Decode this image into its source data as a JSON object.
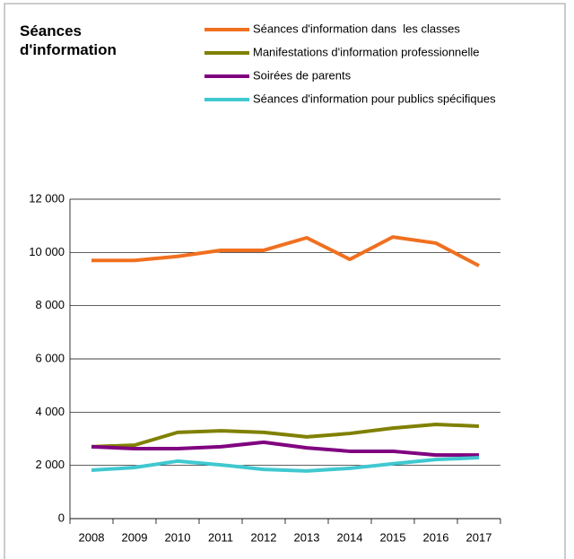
{
  "chart_data": {
    "type": "line",
    "title": "Séances d'information",
    "categories": [
      "2008",
      "2009",
      "2010",
      "2011",
      "2012",
      "2013",
      "2014",
      "2015",
      "2016",
      "2017"
    ],
    "series": [
      {
        "name": "Séances d'information dans  les classes",
        "color": "#f07020",
        "values": [
          9700,
          9700,
          9850,
          10080,
          10080,
          10550,
          9740,
          10580,
          10350,
          9500
        ]
      },
      {
        "name": "Manifestations d'information professionnelle",
        "color": "#808000",
        "values": [
          2700,
          2760,
          3240,
          3300,
          3240,
          3070,
          3200,
          3400,
          3540,
          3470
        ]
      },
      {
        "name": "Soirées de parents",
        "color": "#800080",
        "values": [
          2700,
          2630,
          2630,
          2700,
          2870,
          2660,
          2530,
          2530,
          2390,
          2390
        ]
      },
      {
        "name": "Séances d'information pour publics spécifiques",
        "color": "#40c8d0",
        "values": [
          1820,
          1920,
          2160,
          2020,
          1850,
          1790,
          1890,
          2060,
          2220,
          2290
        ]
      }
    ],
    "ylim": [
      0,
      12000
    ],
    "yticks": [
      0,
      {
        "value": 2000,
        "label": "2 000"
      },
      {
        "value": 4000,
        "label": "4 000"
      },
      {
        "value": 6000,
        "label": "6 000"
      },
      {
        "value": 8000,
        "label": "8 000"
      },
      {
        "value": 10000,
        "label": "10 000"
      },
      {
        "value": 12000,
        "label": "12 000"
      }
    ],
    "grid": true
  }
}
